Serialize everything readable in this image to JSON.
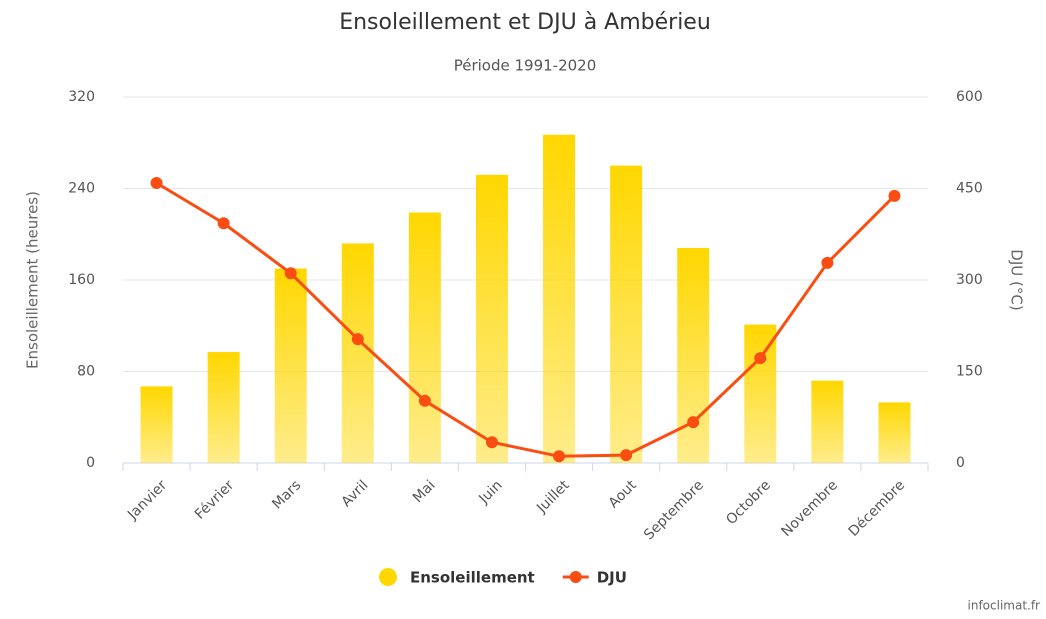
{
  "chart_data": {
    "type": "bar_line",
    "title": "Ensoleillement et DJU à Ambérieu",
    "subtitle": "Période 1991-2020",
    "y_label": "Ensoleillement (heures)",
    "y2_label": "DJU (°C)",
    "source": "infoclimat.fr",
    "categories": [
      "Janvier",
      "Février",
      "Mars",
      "Avril",
      "Mai",
      "Juin",
      "Juillet",
      "Aout",
      "Septembre",
      "Octobre",
      "Novembre",
      "Décembre"
    ],
    "series": [
      {
        "name": "Ensoleillement",
        "type": "bar",
        "color": "#ffd700",
        "values": [
          67,
          97,
          170,
          192,
          219,
          252,
          287,
          260,
          188,
          121,
          72,
          53
        ]
      },
      {
        "name": "DJU",
        "type": "line",
        "axis": "y2",
        "color": "#fa4d12",
        "values": [
          459,
          393,
          311,
          203,
          102,
          34,
          11,
          13,
          67,
          172,
          328,
          438
        ]
      }
    ],
    "ylim": [
      0,
      320
    ],
    "yticks": [
      0,
      80,
      160,
      240,
      320
    ],
    "y2lim": [
      0,
      600
    ],
    "y2ticks": [
      0,
      150,
      300,
      450,
      600
    ],
    "grid": true,
    "legend": "bottom"
  }
}
